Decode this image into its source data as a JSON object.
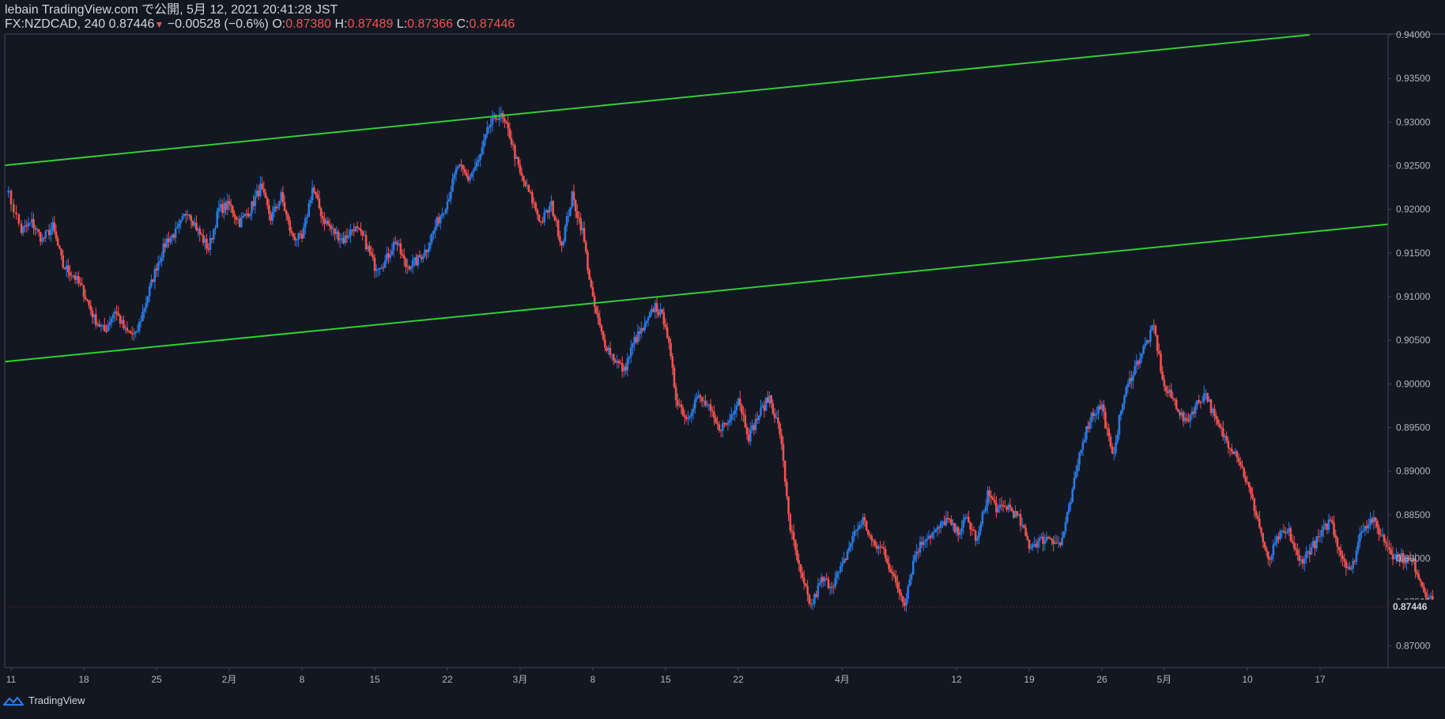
{
  "header": {
    "line1": "lebain TradingView.com で公開, 5月 12, 2021 20:41:28 JST",
    "symbol": "FX:NZDCAD, 240",
    "last": "0.87446",
    "change": "−0.00528 (−0.6%)",
    "o_label": "O:",
    "o_value": "0.87380",
    "h_label": "H:",
    "h_value": "0.87489",
    "l_label": "L:",
    "l_value": "0.87366",
    "c_label": "C:",
    "c_value": "0.87446"
  },
  "footer": {
    "brand": "TradingView"
  },
  "colors": {
    "background": "#131722",
    "up": "#2a7ae2",
    "down": "#ef5350",
    "channel": "#2fd12f",
    "axis_text": "#b2b5be",
    "grid_border": "#363a45"
  },
  "chart_data": {
    "type": "line",
    "style": "candlestick",
    "ylim": [
      0.8675,
      0.94
    ],
    "y_ticks": [
      "0.87000",
      "0.87500",
      "0.88000",
      "0.88500",
      "0.89000",
      "0.89500",
      "0.90000",
      "0.90500",
      "0.91000",
      "0.91500",
      "0.92000",
      "0.92500",
      "0.93000",
      "0.93500",
      "0.94000"
    ],
    "x_ticks": [
      {
        "label": "11",
        "day": 0
      },
      {
        "label": "18",
        "day": 7
      },
      {
        "label": "25",
        "day": 14
      },
      {
        "label": "2月",
        "day": 21
      },
      {
        "label": "8",
        "day": 28
      },
      {
        "label": "15",
        "day": 35
      },
      {
        "label": "22",
        "day": 42
      },
      {
        "label": "3月",
        "day": 49
      },
      {
        "label": "8",
        "day": 56
      },
      {
        "label": "15",
        "day": 63
      },
      {
        "label": "22",
        "day": 70
      },
      {
        "label": "4月",
        "day": 80
      },
      {
        "label": "12",
        "day": 91
      },
      {
        "label": "19",
        "day": 98
      },
      {
        "label": "26",
        "day": 105
      },
      {
        "label": "5月",
        "day": 111
      },
      {
        "label": "10",
        "day": 119
      },
      {
        "label": "17",
        "day": 126
      }
    ],
    "current_price": "0.87446",
    "series": [
      {
        "values": [
          [
            -0.5,
            0.9225
          ],
          [
            1,
            0.9175
          ],
          [
            2,
            0.9185
          ],
          [
            3,
            0.9165
          ],
          [
            4,
            0.918
          ],
          [
            5,
            0.9135
          ],
          [
            6,
            0.9125
          ],
          [
            7,
            0.9105
          ],
          [
            8,
            0.9075
          ],
          [
            9,
            0.906
          ],
          [
            10,
            0.9085
          ],
          [
            11,
            0.906
          ],
          [
            12,
            0.9055
          ],
          [
            13,
            0.9095
          ],
          [
            14,
            0.9135
          ],
          [
            15,
            0.9165
          ],
          [
            16,
            0.9175
          ],
          [
            17,
            0.92
          ],
          [
            18,
            0.9175
          ],
          [
            19,
            0.9155
          ],
          [
            20,
            0.92
          ],
          [
            21,
            0.9205
          ],
          [
            22,
            0.9185
          ],
          [
            23,
            0.92
          ],
          [
            24,
            0.9225
          ],
          [
            25,
            0.919
          ],
          [
            26,
            0.9215
          ],
          [
            27,
            0.917
          ],
          [
            28,
            0.9165
          ],
          [
            29,
            0.9225
          ],
          [
            30,
            0.919
          ],
          [
            31,
            0.9175
          ],
          [
            32,
            0.9165
          ],
          [
            33,
            0.918
          ],
          [
            34,
            0.9165
          ],
          [
            35,
            0.9135
          ],
          [
            36,
            0.914
          ],
          [
            37,
            0.9165
          ],
          [
            38,
            0.9135
          ],
          [
            39,
            0.914
          ],
          [
            40,
            0.9155
          ],
          [
            41,
            0.9185
          ],
          [
            42,
            0.921
          ],
          [
            43,
            0.925
          ],
          [
            44,
            0.9235
          ],
          [
            45,
            0.9255
          ],
          [
            46,
            0.9295
          ],
          [
            47,
            0.931
          ],
          [
            48,
            0.9285
          ],
          [
            49,
            0.924
          ],
          [
            50,
            0.9215
          ],
          [
            51,
            0.9185
          ],
          [
            52,
            0.9205
          ],
          [
            53,
            0.916
          ],
          [
            54,
            0.9215
          ],
          [
            55,
            0.9175
          ],
          [
            56,
            0.9095
          ],
          [
            57,
            0.905
          ],
          [
            58,
            0.903
          ],
          [
            59,
            0.9015
          ],
          [
            60,
            0.905
          ],
          [
            61,
            0.9065
          ],
          [
            62,
            0.909
          ],
          [
            63,
            0.907
          ],
          [
            64,
            0.8985
          ],
          [
            65,
            0.896
          ],
          [
            66,
            0.8985
          ],
          [
            67,
            0.8975
          ],
          [
            68,
            0.895
          ],
          [
            69,
            0.8955
          ],
          [
            70,
            0.8985
          ],
          [
            71,
            0.894
          ],
          [
            72,
            0.8965
          ],
          [
            73,
            0.8985
          ],
          [
            74,
            0.8945
          ],
          [
            75,
            0.8835
          ],
          [
            76,
            0.878
          ],
          [
            77,
            0.8745
          ],
          [
            78,
            0.8775
          ],
          [
            79,
            0.877
          ],
          [
            80,
            0.879
          ],
          [
            81,
            0.8825
          ],
          [
            82,
            0.8845
          ],
          [
            83,
            0.8815
          ],
          [
            84,
            0.881
          ],
          [
            85,
            0.8775
          ],
          [
            86,
            0.875
          ],
          [
            87,
            0.8805
          ],
          [
            88,
            0.8825
          ],
          [
            89,
            0.883
          ],
          [
            90,
            0.8845
          ],
          [
            91,
            0.883
          ],
          [
            92,
            0.8845
          ],
          [
            93,
            0.882
          ],
          [
            94,
            0.8875
          ],
          [
            95,
            0.8855
          ],
          [
            96,
            0.886
          ],
          [
            97,
            0.8845
          ],
          [
            98,
            0.8815
          ],
          [
            99,
            0.882
          ],
          [
            100,
            0.8825
          ],
          [
            101,
            0.8815
          ],
          [
            102,
            0.8865
          ],
          [
            103,
            0.893
          ],
          [
            104,
            0.8965
          ],
          [
            105,
            0.8975
          ],
          [
            106,
            0.8915
          ],
          [
            107,
            0.898
          ],
          [
            108,
            0.9015
          ],
          [
            109,
            0.904
          ],
          [
            110,
            0.9065
          ],
          [
            111,
            0.8995
          ],
          [
            112,
            0.898
          ],
          [
            113,
            0.8955
          ],
          [
            114,
            0.8975
          ],
          [
            115,
            0.899
          ],
          [
            116,
            0.8955
          ],
          [
            117,
            0.8935
          ],
          [
            118,
            0.892
          ],
          [
            119,
            0.8885
          ],
          [
            120,
            0.8845
          ],
          [
            121,
            0.8795
          ],
          [
            122,
            0.8825
          ],
          [
            123,
            0.883
          ],
          [
            124,
            0.8795
          ],
          [
            125,
            0.881
          ],
          [
            126,
            0.8825
          ],
          [
            127,
            0.8845
          ],
          [
            128,
            0.8805
          ],
          [
            129,
            0.8785
          ],
          [
            130,
            0.8835
          ],
          [
            131,
            0.8845
          ],
          [
            132,
            0.8825
          ],
          [
            133,
            0.8805
          ],
          [
            134,
            0.88
          ],
          [
            135,
            0.8795
          ],
          [
            136,
            0.8765
          ],
          [
            137,
            0.87446
          ]
        ]
      }
    ],
    "channel_lines": [
      {
        "x1": -1,
        "y1": 0.925,
        "x2": 125,
        "y2": 0.94
      },
      {
        "x1": -1,
        "y1": 0.9025,
        "x2": 152,
        "y2": 0.9206
      }
    ]
  }
}
